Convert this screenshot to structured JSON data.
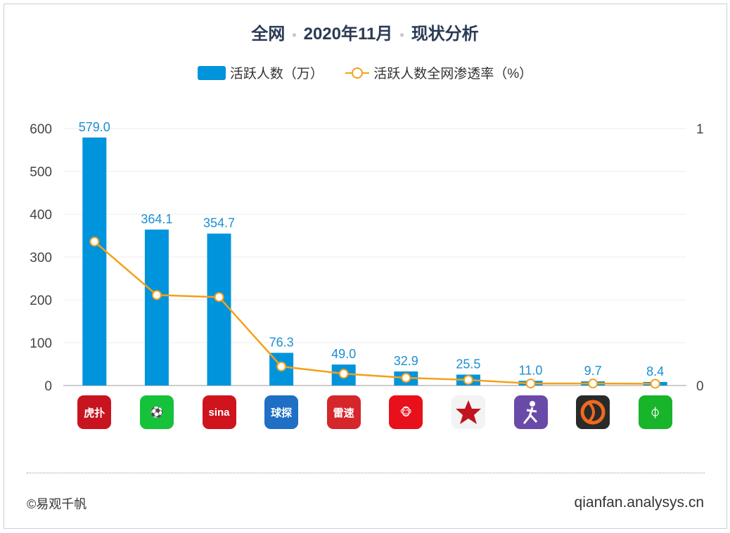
{
  "title": {
    "part1": "全网",
    "part2": "2020年11月",
    "part3": "现状分析"
  },
  "footer": {
    "copyright": "©易观千帆",
    "site": "qianfan.analysys.cn"
  },
  "chart_data": {
    "type": "bar+line",
    "categories_icons": [
      "hupu-icon",
      "dongqiudi-icon",
      "sina-sports-icon",
      "qiutan-icon",
      "leisu-icon",
      "monkey-app-icon",
      "basketball-logo-icon",
      "football-player-icon",
      "orange-ball-icon",
      "green-field-icon"
    ],
    "series": [
      {
        "name": "活跃人数（万）",
        "type": "bar",
        "axis": "left",
        "color": "#0094dc",
        "values": [
          579.0,
          364.1,
          354.7,
          76.3,
          49.0,
          32.9,
          25.5,
          11.0,
          9.7,
          8.4
        ],
        "labels": [
          "579.0",
          "364.1",
          "354.7",
          "76.3",
          "49.0",
          "32.9",
          "25.5",
          "11.0",
          "9.7",
          "8.4"
        ]
      },
      {
        "name": "活跃人数全网渗透率（%）",
        "type": "line",
        "axis": "right",
        "color": "#f5a01a",
        "values": [
          0.56,
          0.352,
          0.344,
          0.074,
          0.046,
          0.03,
          0.022,
          0.008,
          0.008,
          0.007
        ]
      }
    ],
    "y_left": {
      "range": [
        0,
        600
      ],
      "ticks": [
        "0",
        "100",
        "200",
        "300",
        "400",
        "500",
        "600"
      ]
    },
    "y_right": {
      "range": [
        0,
        1
      ],
      "ticks": [
        "0",
        "1"
      ]
    },
    "grid": true,
    "legend": "top-center"
  }
}
